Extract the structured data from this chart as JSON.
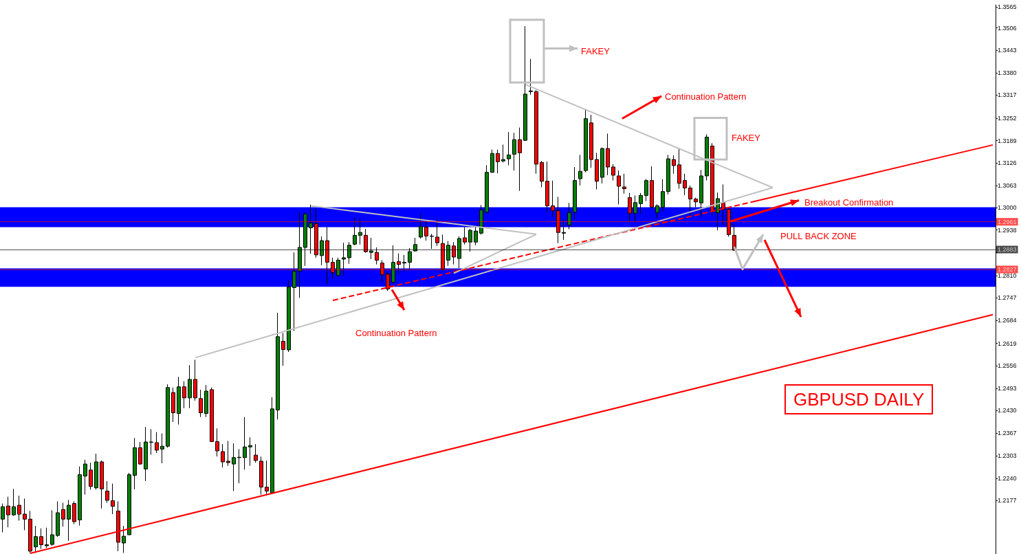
{
  "chart_data": {
    "type": "candlestick",
    "title": "GBPUSD DAILY",
    "categories": [
      null,
      null,
      null,
      null,
      null,
      null,
      null,
      null,
      null,
      null,
      null,
      null,
      null,
      null,
      null,
      null,
      null,
      null,
      null,
      null,
      null,
      null,
      null,
      null,
      null,
      null,
      null,
      null,
      null,
      null,
      null,
      null,
      null,
      null,
      null,
      null,
      null,
      null,
      null,
      null,
      null,
      null,
      null,
      null,
      null,
      null,
      null,
      null,
      null,
      null,
      null,
      null,
      null,
      null,
      null,
      null,
      null,
      null,
      null,
      null,
      null,
      null,
      null,
      null,
      null,
      null,
      null,
      null,
      null,
      null,
      null,
      null,
      null,
      null,
      null,
      null,
      null,
      null,
      null,
      null,
      null,
      null,
      null,
      null,
      null,
      null,
      null,
      null,
      null,
      null,
      null,
      null,
      null,
      null,
      null,
      null,
      null,
      null,
      null,
      null,
      null,
      null,
      null,
      null,
      null,
      null,
      null,
      null,
      null,
      null,
      null,
      null,
      null,
      null,
      null,
      null,
      null,
      null,
      null,
      null,
      null,
      null,
      null,
      null,
      null,
      null,
      null,
      null,
      null,
      null,
      null,
      null,
      null,
      null,
      null,
      null,
      null,
      null,
      null,
      null,
      null,
      null,
      null,
      null,
      null,
      null,
      null,
      null,
      null,
      null,
      null,
      null,
      null,
      null,
      null,
      null,
      null,
      null,
      null,
      null,
      null,
      null,
      null,
      null,
      null,
      null,
      null,
      null,
      null,
      null,
      null,
      null,
      null,
      null,
      null,
      null,
      null,
      null,
      null,
      null,
      null
    ],
    "ohlc": [
      [
        1.2125,
        1.2169,
        1.2088,
        1.216
      ],
      [
        1.2162,
        1.2188,
        1.2102,
        1.2137
      ],
      [
        1.2137,
        1.221,
        1.2134,
        1.216
      ],
      [
        1.2164,
        1.2191,
        1.2121,
        1.2139
      ],
      [
        1.2139,
        1.2183,
        1.2094,
        1.2125
      ],
      [
        1.2125,
        1.2148,
        1.203,
        1.2035
      ],
      [
        1.2047,
        1.2106,
        1.203,
        1.2076
      ],
      [
        1.2076,
        1.2099,
        1.2041,
        1.2053
      ],
      [
        1.205,
        1.2101,
        1.2044,
        1.2053
      ],
      [
        1.2054,
        1.215,
        1.205,
        1.2081
      ],
      [
        1.2079,
        1.2175,
        1.2075,
        1.2143
      ],
      [
        1.2152,
        1.2171,
        1.2104,
        1.2125
      ],
      [
        1.2125,
        1.2179,
        1.2064,
        1.2164
      ],
      [
        1.2169,
        1.2175,
        1.2111,
        1.2118
      ],
      [
        1.2123,
        1.2273,
        1.2107,
        1.225
      ],
      [
        1.2246,
        1.2292,
        1.2194,
        1.228
      ],
      [
        1.2263,
        1.2284,
        1.2208,
        1.2217
      ],
      [
        1.2213,
        1.2309,
        1.2208,
        1.2286
      ],
      [
        1.2286,
        1.229,
        1.2155,
        1.221
      ],
      [
        1.2204,
        1.2232,
        1.2171,
        1.2178
      ],
      [
        1.2177,
        1.2225,
        1.2139,
        1.2161
      ],
      [
        1.2148,
        1.2175,
        1.2035,
        1.206
      ],
      [
        1.2058,
        1.2106,
        1.203,
        1.2077
      ],
      [
        1.2081,
        1.2255,
        1.2081,
        1.225
      ],
      [
        1.2248,
        1.2353,
        1.2209,
        1.2326
      ],
      [
        1.2326,
        1.2342,
        1.2278,
        1.228
      ],
      [
        1.2266,
        1.2384,
        1.2232,
        1.2342
      ],
      [
        1.2341,
        1.2378,
        1.2306,
        1.2342
      ],
      [
        1.234,
        1.237,
        1.2311,
        1.2319
      ],
      [
        1.2322,
        1.2366,
        1.2282,
        1.233
      ],
      [
        1.233,
        1.2504,
        1.2326,
        1.2495
      ],
      [
        1.2481,
        1.2495,
        1.2398,
        1.2424
      ],
      [
        1.2422,
        1.2525,
        1.2391,
        1.2497
      ],
      [
        1.2497,
        1.2513,
        1.2437,
        1.2466
      ],
      [
        1.2466,
        1.2558,
        1.2437,
        1.2518
      ],
      [
        1.2518,
        1.2573,
        1.2458,
        1.2466
      ],
      [
        1.2464,
        1.2489,
        1.2412,
        1.2424
      ],
      [
        1.2422,
        1.2502,
        1.2412,
        1.2485
      ],
      [
        1.2489,
        1.2495,
        1.2343,
        1.2343
      ],
      [
        1.2343,
        1.238,
        1.2301,
        1.2317
      ],
      [
        1.2315,
        1.2336,
        1.227,
        1.2286
      ],
      [
        1.2288,
        1.2345,
        1.2275,
        1.2284
      ],
      [
        1.228,
        1.2338,
        1.2204,
        1.2298
      ],
      [
        1.2298,
        1.2322,
        1.2226,
        1.2299
      ],
      [
        1.2298,
        1.2412,
        1.2264,
        1.2328
      ],
      [
        1.2328,
        1.2355,
        1.2275,
        1.2332
      ],
      [
        1.2305,
        1.2336,
        1.2284,
        1.229
      ],
      [
        1.2288,
        1.2301,
        1.2194,
        1.2215
      ],
      [
        1.2215,
        1.229,
        1.2194,
        1.2204
      ],
      [
        1.2199,
        1.2468,
        1.2199,
        1.2435
      ],
      [
        1.2432,
        1.2705,
        1.2405,
        1.2638
      ],
      [
        1.2625,
        1.2648,
        1.2556,
        1.2602
      ],
      [
        1.2601,
        1.2797,
        1.2595,
        1.2778
      ],
      [
        1.2776,
        1.2875,
        1.2654,
        1.2822
      ],
      [
        1.2822,
        1.2987,
        1.2747,
        1.2889
      ],
      [
        1.2889,
        1.2987,
        1.2837,
        1.2983
      ],
      [
        1.2944,
        1.3009,
        1.2871,
        1.2958
      ],
      [
        1.2956,
        1.2998,
        1.286,
        1.2868
      ],
      [
        1.2866,
        1.292,
        1.2839,
        1.2908
      ],
      [
        1.2908,
        1.2946,
        1.2786,
        1.2847
      ],
      [
        1.2847,
        1.286,
        1.2801,
        1.2818
      ],
      [
        1.281,
        1.286,
        1.2809,
        1.2853
      ],
      [
        1.2856,
        1.2902,
        1.2809,
        1.286
      ],
      [
        1.286,
        1.2904,
        1.2843,
        1.2895
      ],
      [
        1.2898,
        1.2973,
        1.2895,
        1.2923
      ],
      [
        1.2923,
        1.2969,
        1.2897,
        1.2931
      ],
      [
        1.2923,
        1.2941,
        1.2874,
        1.2877
      ],
      [
        1.2875,
        1.2916,
        1.2856,
        1.2879
      ],
      [
        1.2875,
        1.2889,
        1.2841,
        1.2853
      ],
      [
        1.2845,
        1.2853,
        1.2791,
        1.2812
      ],
      [
        1.2814,
        1.282,
        1.2767,
        1.2772
      ],
      [
        1.2791,
        1.2895,
        1.2789,
        1.2847
      ],
      [
        1.2849,
        1.2872,
        1.2814,
        1.2841
      ],
      [
        1.2845,
        1.2868,
        1.282,
        1.2847
      ],
      [
        1.2847,
        1.2887,
        1.2824,
        1.2877
      ],
      [
        1.2879,
        1.2916,
        1.2877,
        1.2897
      ],
      [
        1.2918,
        1.2983,
        1.2914,
        1.2948
      ],
      [
        1.2946,
        1.2964,
        1.2908,
        1.2921
      ],
      [
        1.2921,
        1.2927,
        1.2885,
        1.292
      ],
      [
        1.2918,
        1.2967,
        1.2893,
        1.2902
      ],
      [
        1.29,
        1.2925,
        1.2824,
        1.2828
      ],
      [
        1.2853,
        1.2907,
        1.2837,
        1.2895
      ],
      [
        1.2893,
        1.2904,
        1.2841,
        1.2862
      ],
      [
        1.2858,
        1.292,
        1.2831,
        1.2914
      ],
      [
        1.2916,
        1.2946,
        1.2897,
        1.2904
      ],
      [
        1.2904,
        1.2941,
        1.2877,
        1.2937
      ],
      [
        1.2904,
        1.295,
        1.2895,
        1.2935
      ],
      [
        1.2929,
        1.3008,
        1.2925,
        1.2994
      ],
      [
        1.2988,
        1.312,
        1.2984,
        1.31
      ],
      [
        1.31,
        1.3164,
        1.3099,
        1.3153
      ],
      [
        1.3153,
        1.3164,
        1.3097,
        1.313
      ],
      [
        1.3132,
        1.3178,
        1.3128,
        1.3136
      ],
      [
        1.3138,
        1.3213,
        1.312,
        1.3149
      ],
      [
        1.3151,
        1.3211,
        1.3105,
        1.3192
      ],
      [
        1.3192,
        1.3226,
        1.3048,
        1.3155
      ],
      [
        1.319,
        1.3511,
        1.3188,
        1.332
      ],
      [
        1.3327,
        1.3419,
        1.3318,
        1.3329
      ],
      [
        1.3327,
        1.3331,
        1.3096,
        1.3123
      ],
      [
        1.3128,
        1.3132,
        1.3058,
        1.3075
      ],
      [
        1.3075,
        1.313,
        1.2987,
        1.3006
      ],
      [
        1.3006,
        1.3077,
        1.2975,
        1.2992
      ],
      [
        1.2992,
        1.3031,
        1.2901,
        1.2931
      ],
      [
        1.2929,
        1.2968,
        1.291,
        1.2931
      ],
      [
        1.2952,
        1.3014,
        1.294,
        1.2987
      ],
      [
        1.2988,
        1.3115,
        1.2968,
        1.3077
      ],
      [
        1.3082,
        1.3149,
        1.3063,
        1.3103
      ],
      [
        1.3105,
        1.3278,
        1.31,
        1.3251
      ],
      [
        1.3239,
        1.3262,
        1.3113,
        1.3136
      ],
      [
        1.3136,
        1.3155,
        1.3052,
        1.3075
      ],
      [
        1.3086,
        1.317,
        1.3069,
        1.3167
      ],
      [
        1.3167,
        1.3209,
        1.3092,
        1.3115
      ],
      [
        1.3115,
        1.3123,
        1.3077,
        1.3092
      ],
      [
        1.309,
        1.3105,
        1.301,
        1.3061
      ],
      [
        1.3059,
        1.3096,
        1.304,
        1.3054
      ],
      [
        1.3029,
        1.3042,
        1.2959,
        1.2985
      ],
      [
        1.2985,
        1.3035,
        1.296,
        1.3015
      ],
      [
        1.3012,
        1.3042,
        1.2983,
        1.3035
      ],
      [
        1.3035,
        1.3081,
        1.3019,
        1.3077
      ],
      [
        1.3077,
        1.3117,
        1.3002,
        1.3002
      ],
      [
        1.2987,
        1.301,
        1.2971,
        1.3006
      ],
      [
        1.3002,
        1.3081,
        1.2991,
        1.3046
      ],
      [
        1.3046,
        1.3149,
        1.3038,
        1.3138
      ],
      [
        1.3136,
        1.3148,
        1.3096,
        1.3119
      ],
      [
        1.3121,
        1.3169,
        1.3054,
        1.3069
      ],
      [
        1.3077,
        1.3096,
        1.3036,
        1.3056
      ],
      [
        1.3056,
        1.3063,
        1.2973,
        1.3025
      ],
      [
        1.3025,
        1.3029,
        1.3002,
        1.3017
      ],
      [
        1.3014,
        1.3107,
        1.2975,
        1.309
      ],
      [
        1.309,
        1.3207,
        1.3077,
        1.3199
      ],
      [
        1.3174,
        1.3182,
        1.2981,
        1.2989
      ],
      [
        1.2986,
        1.3043,
        1.2937,
        1.3026
      ],
      [
        1.3015,
        1.3066,
        1.2953,
        1.2996
      ],
      [
        1.2996,
        1.3001,
        1.2919,
        1.2925
      ],
      [
        1.2923,
        1.2955,
        1.2879,
        1.2881
      ],
      null,
      null,
      null,
      null,
      null,
      null,
      null,
      null,
      null,
      null,
      null,
      null,
      null,
      null,
      null,
      null,
      null,
      null,
      null,
      null,
      null,
      null,
      null,
      null,
      null,
      null,
      null,
      null,
      null,
      null,
      null,
      null,
      null,
      null,
      null,
      null,
      null,
      null,
      null,
      null,
      null,
      null,
      null,
      null,
      null,
      null,
      null
    ],
    "ylim": [
      1.2027,
      1.3571
    ],
    "yticks": [
      {
        "value": 1.2177,
        "label": "1.2177"
      },
      {
        "value": 1.224,
        "label": "1.2240"
      },
      {
        "value": 1.2303,
        "label": "1.2303"
      },
      {
        "value": 1.2367,
        "label": "1.2367"
      },
      {
        "value": 1.243,
        "label": "1.2430"
      },
      {
        "value": 1.2493,
        "label": "1.2493"
      },
      {
        "value": 1.2556,
        "label": "1.2556"
      },
      {
        "value": 1.2619,
        "label": "1.2619"
      },
      {
        "value": 1.2684,
        "label": "1.2684"
      },
      {
        "value": 1.2747,
        "label": "1.2747"
      },
      {
        "value": 1.281,
        "label": "1.2810"
      },
      {
        "value": 1.2875,
        "label": null
      },
      {
        "value": 1.2938,
        "label": "1.2938"
      },
      {
        "value": 1.3,
        "label": "1.3000"
      },
      {
        "value": 1.3063,
        "label": "1.3063"
      },
      {
        "value": 1.3126,
        "label": "1.3126"
      },
      {
        "value": 1.3189,
        "label": "1.3189"
      },
      {
        "value": 1.3252,
        "label": "1.3252"
      },
      {
        "value": 1.3317,
        "label": "1.3317"
      },
      {
        "value": 1.338,
        "label": "1.3380"
      },
      {
        "value": 1.3443,
        "label": "1.3443"
      },
      {
        "value": 1.3506,
        "label": "1.3506"
      },
      {
        "value": 1.3565,
        "label": "1.3565"
      }
    ],
    "tick_labels": "y",
    "grid": false,
    "series": [
      {
        "type": "line",
        "color": "#ff0000",
        "values": [
          null,
          null,
          null,
          null,
          null,
          1.2029,
          null,
          null,
          null,
          null,
          null,
          null,
          null,
          null,
          null,
          null,
          null,
          null,
          null,
          null,
          null,
          null,
          null,
          null,
          null,
          null,
          null,
          null,
          null,
          null,
          null,
          null,
          null,
          null,
          null,
          null,
          null,
          null,
          null,
          null,
          null,
          null,
          null,
          null,
          null,
          null,
          null,
          null,
          null,
          null,
          null,
          null,
          null,
          null,
          null,
          null,
          null,
          null,
          null,
          null,
          null,
          null,
          null,
          null,
          null,
          null,
          null,
          null,
          null,
          null,
          null,
          null,
          null,
          null,
          null,
          null,
          null,
          null,
          null,
          null,
          null,
          null,
          null,
          null,
          null,
          null,
          null,
          null,
          null,
          null,
          null,
          null,
          null,
          null,
          null,
          null,
          null,
          null,
          null,
          null,
          null,
          null,
          null,
          null,
          null,
          null,
          null,
          null,
          null,
          null,
          null,
          null,
          null,
          null,
          null,
          null,
          null,
          null,
          null,
          null,
          null,
          null,
          null,
          null,
          null,
          null,
          null,
          null,
          null,
          null,
          null,
          null,
          null,
          null,
          null,
          null,
          null,
          null,
          null,
          null,
          null,
          null,
          null,
          null,
          null,
          null,
          null,
          null,
          null,
          null,
          null,
          null,
          null,
          null,
          null,
          null,
          null,
          null,
          null,
          null,
          null,
          null,
          null,
          null,
          null,
          null,
          null,
          null,
          null,
          null,
          null,
          null,
          null,
          null,
          null,
          null,
          null,
          null,
          null,
          null,
          1.27
        ]
      },
      {
        "type": "line",
        "color": "#ff0000",
        "line_style": "dashed",
        "values": [
          null,
          null,
          null,
          null,
          null,
          null,
          null,
          null,
          null,
          null,
          null,
          null,
          null,
          null,
          null,
          null,
          null,
          null,
          null,
          null,
          null,
          null,
          null,
          null,
          null,
          null,
          null,
          null,
          null,
          null,
          null,
          null,
          null,
          null,
          null,
          null,
          null,
          null,
          null,
          null,
          null,
          null,
          null,
          null,
          null,
          null,
          null,
          null,
          null,
          null,
          null,
          null,
          null,
          null,
          null,
          null,
          null,
          null,
          null,
          null,
          1.274,
          null,
          null,
          null,
          null,
          null,
          null,
          null,
          null,
          null,
          null,
          null,
          null,
          null,
          null,
          null,
          null,
          null,
          null,
          null,
          null,
          null,
          null,
          null,
          null,
          null,
          null,
          null,
          null,
          null,
          null,
          null,
          null,
          null,
          null,
          null,
          null,
          null,
          null,
          null,
          null,
          null,
          null,
          null,
          null,
          null,
          null,
          null,
          null,
          null,
          null,
          null,
          null,
          null,
          null,
          null,
          null,
          null,
          null,
          null,
          null,
          null,
          null,
          null,
          null,
          null,
          null,
          null,
          null,
          null,
          null,
          null,
          null,
          null,
          null,
          null,
          1.3016,
          null,
          null,
          null,
          null,
          null,
          null,
          null,
          null,
          null,
          null,
          null,
          null,
          null,
          null,
          null,
          null,
          null,
          null,
          null,
          null,
          null,
          null,
          null,
          null,
          null,
          null,
          null,
          null,
          null,
          null,
          null,
          null,
          null,
          null,
          null,
          null,
          null,
          null,
          null,
          null,
          null,
          null,
          null,
          null
        ]
      },
      {
        "type": "line",
        "color": "#ff0000",
        "values": [
          null,
          null,
          null,
          null,
          null,
          null,
          null,
          null,
          null,
          null,
          null,
          null,
          null,
          null,
          null,
          null,
          null,
          null,
          null,
          null,
          null,
          null,
          null,
          null,
          null,
          null,
          null,
          null,
          null,
          null,
          null,
          null,
          null,
          null,
          null,
          null,
          null,
          null,
          null,
          null,
          null,
          null,
          null,
          null,
          null,
          null,
          null,
          null,
          null,
          null,
          null,
          null,
          null,
          null,
          null,
          null,
          null,
          null,
          null,
          null,
          null,
          null,
          null,
          null,
          null,
          null,
          null,
          null,
          null,
          null,
          null,
          null,
          null,
          null,
          null,
          null,
          null,
          null,
          null,
          null,
          null,
          null,
          null,
          null,
          null,
          null,
          null,
          null,
          null,
          null,
          null,
          null,
          null,
          null,
          null,
          null,
          null,
          null,
          null,
          null,
          null,
          null,
          null,
          null,
          null,
          null,
          null,
          null,
          null,
          null,
          null,
          null,
          null,
          null,
          null,
          null,
          null,
          null,
          null,
          null,
          null,
          null,
          null,
          null,
          null,
          null,
          null,
          null,
          null,
          null,
          null,
          null,
          null,
          null,
          null,
          null,
          1.3016,
          null,
          null,
          null,
          null,
          null,
          null,
          null,
          null,
          null,
          null,
          null,
          null,
          null,
          null,
          null,
          null,
          null,
          null,
          null,
          null,
          null,
          null,
          null,
          null,
          null,
          null,
          null,
          null,
          null,
          null,
          null,
          null,
          null,
          null,
          null,
          null,
          null,
          null,
          null,
          null,
          null,
          null,
          null,
          1.3177
        ]
      },
      {
        "type": "line",
        "color": "#c0c0c0",
        "values": [
          null,
          null,
          null,
          null,
          null,
          null,
          null,
          null,
          null,
          null,
          null,
          null,
          null,
          null,
          null,
          null,
          null,
          null,
          null,
          null,
          null,
          null,
          null,
          null,
          null,
          null,
          null,
          null,
          null,
          null,
          null,
          null,
          null,
          null,
          null,
          1.2579,
          null,
          null,
          null,
          null,
          null,
          null,
          null,
          null,
          null,
          null,
          null,
          null,
          null,
          null,
          null,
          null,
          null,
          null,
          null,
          null,
          null,
          null,
          null,
          null,
          null,
          null,
          null,
          null,
          null,
          null,
          null,
          null,
          null,
          null,
          null,
          null,
          null,
          null,
          null,
          null,
          null,
          null,
          null,
          null,
          null,
          null,
          null,
          null,
          null,
          null,
          null,
          null,
          null,
          null,
          null,
          null,
          null,
          null,
          null,
          null,
          null,
          null,
          null,
          null,
          null,
          null,
          null,
          null,
          null,
          null,
          null,
          null,
          null,
          null,
          null,
          null,
          null,
          null,
          null,
          null,
          null,
          null,
          null,
          null,
          null,
          null,
          null,
          null,
          null,
          null,
          null,
          null,
          null,
          null,
          null,
          null,
          null,
          null,
          null,
          null,
          null,
          null,
          null,
          null,
          1.3057,
          null,
          null,
          null,
          null,
          null,
          null,
          null,
          null,
          null,
          null,
          null,
          null,
          null,
          null,
          null,
          null,
          null,
          null,
          null,
          null,
          null,
          null,
          null,
          null,
          null,
          null,
          null,
          null,
          null,
          null,
          null,
          null,
          null,
          null,
          null,
          null,
          null,
          null,
          null,
          null
        ]
      },
      {
        "type": "line",
        "color": "#c0c0c0",
        "values": [
          null,
          null,
          null,
          null,
          null,
          null,
          null,
          null,
          null,
          null,
          null,
          null,
          null,
          null,
          null,
          null,
          null,
          null,
          null,
          null,
          null,
          null,
          null,
          null,
          null,
          null,
          null,
          null,
          null,
          null,
          null,
          null,
          null,
          null,
          null,
          null,
          null,
          null,
          null,
          null,
          null,
          null,
          null,
          null,
          null,
          null,
          null,
          null,
          null,
          null,
          null,
          null,
          null,
          null,
          null,
          null,
          null,
          null,
          null,
          null,
          null,
          null,
          null,
          null,
          null,
          null,
          null,
          null,
          null,
          null,
          null,
          null,
          null,
          null,
          null,
          null,
          null,
          null,
          null,
          null,
          null,
          null,
          null,
          null,
          null,
          null,
          null,
          null,
          null,
          null,
          null,
          null,
          null,
          null,
          null,
          1.3347,
          null,
          null,
          null,
          null,
          null,
          null,
          null,
          null,
          null,
          null,
          null,
          null,
          null,
          null,
          null,
          null,
          null,
          null,
          null,
          null,
          null,
          null,
          null,
          null,
          null,
          null,
          null,
          null,
          null,
          null,
          null,
          null,
          null,
          null,
          null,
          null,
          null,
          null,
          null,
          null,
          null,
          null,
          null,
          null,
          1.3057,
          null,
          null,
          null,
          null,
          null,
          null,
          null,
          null,
          null,
          null,
          null,
          null,
          null,
          null,
          null,
          null,
          null,
          null,
          null,
          null,
          null,
          null,
          null,
          null,
          null,
          null,
          null,
          null,
          null,
          null,
          null,
          null,
          null,
          null,
          null,
          null,
          null,
          null,
          null,
          null
        ]
      },
      {
        "type": "line",
        "color": "#c0c0c0",
        "values": [
          null,
          null,
          null,
          null,
          null,
          null,
          null,
          null,
          null,
          null,
          null,
          null,
          null,
          null,
          null,
          null,
          null,
          null,
          null,
          null,
          null,
          null,
          null,
          null,
          null,
          null,
          null,
          null,
          null,
          null,
          null,
          null,
          null,
          null,
          null,
          null,
          null,
          null,
          null,
          null,
          null,
          null,
          null,
          null,
          null,
          null,
          null,
          null,
          null,
          null,
          null,
          null,
          null,
          null,
          null,
          null,
          1.3006,
          null,
          null,
          null,
          null,
          null,
          null,
          null,
          null,
          null,
          null,
          null,
          null,
          null,
          null,
          null,
          null,
          null,
          null,
          null,
          null,
          null,
          null,
          null,
          null,
          null,
          null,
          null,
          null,
          null,
          null,
          null,
          null,
          null,
          null,
          null,
          null,
          null,
          null,
          null,
          null,
          1.2926,
          null,
          null,
          null,
          null,
          null,
          null,
          null,
          null,
          null,
          null,
          null,
          null,
          null,
          null,
          null,
          null,
          null,
          null,
          null,
          null,
          null,
          null,
          null,
          null,
          null,
          null,
          null,
          null,
          null,
          null,
          null,
          null,
          null,
          null,
          null,
          null,
          null,
          null,
          null,
          null,
          null,
          null,
          null,
          null,
          null,
          null,
          null,
          null,
          null,
          null,
          null,
          null,
          null,
          null,
          null,
          null,
          null,
          null,
          null,
          null,
          null,
          null,
          null,
          null,
          null,
          null,
          null,
          null,
          null,
          null,
          null,
          null,
          null,
          null,
          null,
          null,
          null,
          null,
          null,
          null,
          null,
          null,
          null
        ]
      },
      {
        "type": "line",
        "color": "#c0c0c0",
        "values": [
          null,
          null,
          null,
          null,
          null,
          null,
          null,
          null,
          null,
          null,
          null,
          null,
          null,
          null,
          null,
          null,
          null,
          null,
          null,
          null,
          null,
          null,
          null,
          null,
          null,
          null,
          null,
          null,
          null,
          null,
          null,
          null,
          null,
          null,
          null,
          null,
          null,
          null,
          null,
          null,
          null,
          null,
          null,
          null,
          null,
          null,
          null,
          null,
          null,
          null,
          null,
          null,
          null,
          null,
          null,
          null,
          null,
          null,
          null,
          null,
          null,
          null,
          null,
          null,
          null,
          null,
          null,
          null,
          null,
          null,
          null,
          null,
          null,
          null,
          null,
          null,
          null,
          null,
          null,
          null,
          null,
          null,
          1.2816,
          null,
          null,
          null,
          null,
          null,
          null,
          null,
          null,
          null,
          null,
          null,
          null,
          null,
          null,
          1.2926,
          null,
          null,
          null,
          null,
          null,
          null,
          null,
          null,
          null,
          null,
          null,
          null,
          null,
          null,
          null,
          null,
          null,
          null,
          null,
          null,
          null,
          null,
          null,
          null,
          null,
          null,
          null,
          null,
          null,
          null,
          null,
          null,
          null,
          null,
          null,
          null,
          null,
          null,
          null,
          null,
          null,
          null,
          null,
          null,
          null,
          null,
          null,
          null,
          null,
          null,
          null,
          null,
          null,
          null,
          null,
          null,
          null,
          null,
          null,
          null,
          null,
          null,
          null,
          null,
          null,
          null,
          null,
          null,
          null,
          null,
          null,
          null,
          null,
          null,
          null,
          null,
          null,
          null,
          null,
          null,
          null,
          null,
          null
        ]
      }
    ],
    "bands": [
      {
        "axis": "y",
        "from": 1.2946,
        "to": 1.3002,
        "color": "#0000ff"
      },
      {
        "axis": "y",
        "from": 1.2778,
        "to": 1.283,
        "color": "#0000ff"
      }
    ],
    "ref_lines": [
      {
        "axis": "y",
        "value": 1.2961,
        "label": "1.2961",
        "color": "#ff0000"
      },
      {
        "axis": "y",
        "value": 1.2883,
        "label": "1.2883",
        "color": "#000000"
      },
      {
        "axis": "y",
        "value": 1.2827,
        "label": "1.2827",
        "color": "#ff0000"
      }
    ],
    "annotations": [
      "FAKEY",
      "Continuation Pattern",
      "FAKEY",
      "Breakout Confirmation",
      "PULL BACK ZONE",
      "Continuation Pattern"
    ]
  }
}
